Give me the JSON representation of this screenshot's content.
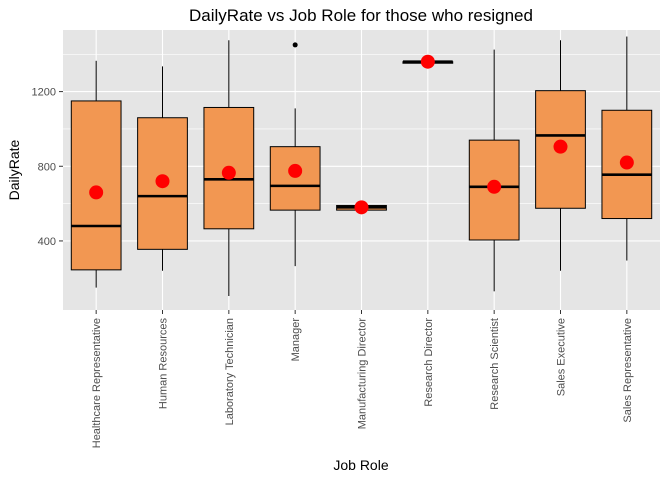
{
  "chart_data": {
    "type": "boxplot",
    "title": "DailyRate vs Job Role for those who resigned",
    "xlabel": "Job Role",
    "ylabel": "DailyRate",
    "ylim": [
      30,
      1530
    ],
    "yticks": [
      400,
      800,
      1200
    ],
    "grid": true,
    "colors": {
      "panel": "#E5E5E5",
      "grid": "#FFFFFF",
      "box_fill": "#F29752",
      "box_stroke": "#000000",
      "mean_point": "#FF0000",
      "outlier": "#000000"
    },
    "categories": [
      "Healthcare Representative",
      "Human Resources",
      "Laboratory Technician",
      "Manager",
      "Manufacturing Director",
      "Research Director",
      "Research Scientist",
      "Sales Executive",
      "Sales Representative"
    ],
    "boxes": [
      {
        "min": 150,
        "q1": 245,
        "median": 480,
        "q3": 1150,
        "max": 1365,
        "mean": 660,
        "outliers": []
      },
      {
        "min": 240,
        "q1": 355,
        "median": 640,
        "q3": 1060,
        "max": 1335,
        "mean": 720,
        "outliers": []
      },
      {
        "min": 105,
        "q1": 465,
        "median": 730,
        "q3": 1115,
        "max": 1475,
        "mean": 765,
        "outliers": []
      },
      {
        "min": 265,
        "q1": 565,
        "median": 695,
        "q3": 905,
        "max": 1110,
        "mean": 775,
        "outliers": [
          1450
        ]
      },
      {
        "min": 565,
        "q1": 565,
        "median": 580,
        "q3": 590,
        "max": 590,
        "mean": 580,
        "outliers": []
      },
      {
        "min": 1360,
        "q1": 1360,
        "median": 1360,
        "q3": 1360,
        "max": 1360,
        "mean": 1360,
        "outliers": []
      },
      {
        "min": 130,
        "q1": 405,
        "median": 690,
        "q3": 940,
        "max": 1425,
        "mean": 690,
        "outliers": []
      },
      {
        "min": 240,
        "q1": 575,
        "median": 965,
        "q3": 1205,
        "max": 1475,
        "mean": 905,
        "outliers": []
      },
      {
        "min": 295,
        "q1": 520,
        "median": 755,
        "q3": 1100,
        "max": 1495,
        "mean": 820,
        "outliers": []
      }
    ]
  }
}
